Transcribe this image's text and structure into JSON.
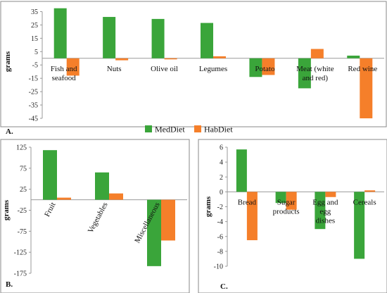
{
  "legend": [
    {
      "label": "MedDiet",
      "color": "#3aa53a"
    },
    {
      "label": "HabDiet",
      "color": "#f57f2a"
    }
  ],
  "chart_data": [
    {
      "type": "bar",
      "panel": "A.",
      "ylabel": "grams",
      "ylim": [
        -45,
        40
      ],
      "yticks": [
        35,
        25,
        15,
        5,
        -5,
        -15,
        -25,
        -35,
        -45
      ],
      "categories": [
        [
          "Fish and",
          "seafood"
        ],
        [
          "Nuts"
        ],
        [
          "Olive oil"
        ],
        [
          "Legumes"
        ],
        [
          "Potato"
        ],
        [
          "Meat (white",
          "and red)"
        ],
        [
          "Red wine"
        ]
      ],
      "series": [
        {
          "name": "MedDiet",
          "values": [
            37.5,
            31,
            29.5,
            26.5,
            -14,
            -22.5,
            2
          ]
        },
        {
          "name": "HabDiet",
          "values": [
            -13,
            -1.5,
            -0.8,
            1.5,
            -12.5,
            7,
            -45
          ]
        }
      ]
    },
    {
      "type": "bar",
      "panel": "B.",
      "ylabel": "grams",
      "ylim": [
        -175,
        125
      ],
      "yticks": [
        125,
        75,
        25,
        -25,
        -75,
        -125,
        -175
      ],
      "categories": [
        "Fruit",
        "Vegetables",
        "Miscellaneous"
      ],
      "series": [
        {
          "name": "MedDiet",
          "values": [
            118,
            65,
            -158
          ]
        },
        {
          "name": "HabDiet",
          "values": [
            5,
            15,
            -97
          ]
        }
      ]
    },
    {
      "type": "bar",
      "panel": "C.",
      "ylabel": "grams",
      "ylim": [
        -10,
        6
      ],
      "yticks": [
        6,
        4,
        2,
        0,
        -2,
        -4,
        -6,
        -8,
        -10
      ],
      "categories": [
        [
          "Bread"
        ],
        [
          "Sugar",
          "products"
        ],
        [
          "Egg and",
          "egg",
          "dishes"
        ],
        [
          "Cereals"
        ]
      ],
      "series": [
        {
          "name": "MedDiet",
          "values": [
            5.7,
            -1.5,
            -5,
            -9
          ]
        },
        {
          "name": "HabDiet",
          "values": [
            -6.5,
            -2.4,
            -0.7,
            0.2
          ]
        }
      ]
    }
  ]
}
